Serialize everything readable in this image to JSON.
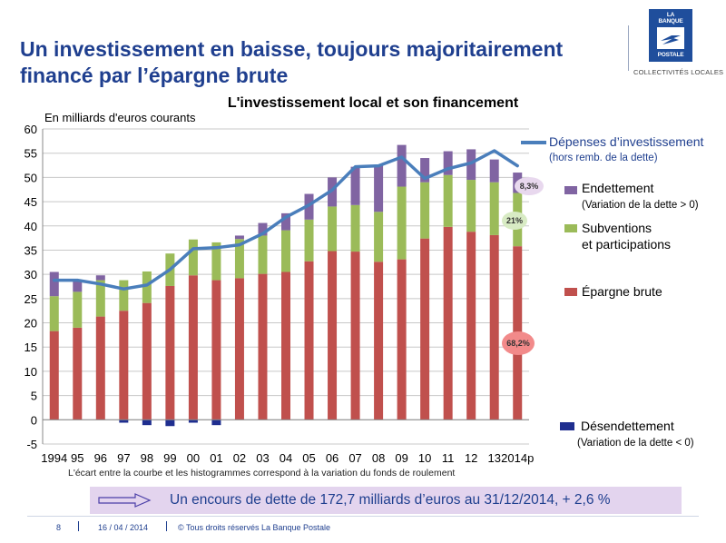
{
  "slide": {
    "title": "Un investissement en baisse, toujours majoritairement financé par l’épargne brute",
    "logo_line1": "LA BANQUE",
    "logo_line2": "POSTALE",
    "logo_sub": "COLLECTIVITÉS LOCALES",
    "banner_text": "Un encours de dette de 172,7 milliards d’euros au 31/12/2014, + 2,6 %",
    "footer_page": "8",
    "footer_date": "16 / 04 / 2014",
    "footer_copyright": "© Tous droits réservés La Banque Postale"
  },
  "chart_data": {
    "type": "bar",
    "title": "L'investissement local et son financement",
    "ylabel": "En milliards d'euros courants",
    "note": "L'écart entre la courbe et les histogrammes correspond à la variation du fonds de roulement",
    "ylim": [
      -5,
      60
    ],
    "yticks": [
      -5,
      0,
      5,
      10,
      15,
      20,
      25,
      30,
      35,
      40,
      45,
      50,
      55,
      60
    ],
    "grid": true,
    "categories": [
      "1994",
      "95",
      "96",
      "97",
      "98",
      "99",
      "00",
      "01",
      "02",
      "03",
      "04",
      "05",
      "06",
      "07",
      "08",
      "09",
      "10",
      "11",
      "12",
      "13",
      "2014p"
    ],
    "stacked": true,
    "series": [
      {
        "name": "Épargne brute",
        "color": "#c0504d",
        "values": [
          18.3,
          19.0,
          21.3,
          22.5,
          24.1,
          27.6,
          29.8,
          28.8,
          29.2,
          30.1,
          30.5,
          32.7,
          34.8,
          34.7,
          32.6,
          33.1,
          37.4,
          39.8,
          38.8,
          38.1,
          35.8
        ]
      },
      {
        "name": "Subventions et participations",
        "color": "#9bbb59",
        "values": [
          7.2,
          7.4,
          7.5,
          6.3,
          6.5,
          6.7,
          7.4,
          7.8,
          8.1,
          7.9,
          8.6,
          8.6,
          9.2,
          9.6,
          10.3,
          15.0,
          11.6,
          10.7,
          10.7,
          10.9,
          11.0
        ]
      },
      {
        "name": "Endettement",
        "sublabel": "(Variation de la dette > 0)",
        "color": "#8064a2",
        "values": [
          5.0,
          2.5,
          1.0,
          0,
          0,
          0,
          0,
          0,
          0.7,
          2.6,
          3.5,
          5.3,
          6.0,
          7.9,
          9.6,
          8.6,
          5.0,
          4.9,
          6.3,
          4.7,
          4.2
        ]
      },
      {
        "name": "Désendettement",
        "sublabel": "(Variation de la dette < 0)",
        "color": "#1f2e8f",
        "values": [
          0,
          0,
          0,
          -0.6,
          -1.1,
          -1.3,
          -0.6,
          -1.1,
          0,
          0,
          0,
          0,
          0,
          0,
          0,
          0,
          0,
          0,
          0,
          0,
          0
        ]
      }
    ],
    "line": {
      "name": "Dépenses d’investissement",
      "sublabel": "(hors remb. de la dette)",
      "color": "#4a7ebb",
      "values": [
        28.8,
        28.8,
        28.0,
        27.0,
        27.8,
        31.0,
        35.3,
        35.5,
        36.1,
        38.4,
        41.8,
        44.3,
        47.4,
        52.2,
        52.4,
        54.2,
        49.8,
        51.8,
        53.0,
        55.5,
        52.4
      ]
    },
    "annotations": [
      {
        "label": "8,3%",
        "color": "#e8d8ee",
        "textColor": "#333333"
      },
      {
        "label": "21%",
        "color": "#d8ebc4",
        "textColor": "#333333"
      },
      {
        "label": "68,2%",
        "color": "#f28a8a",
        "textColor": "#333333"
      }
    ]
  }
}
